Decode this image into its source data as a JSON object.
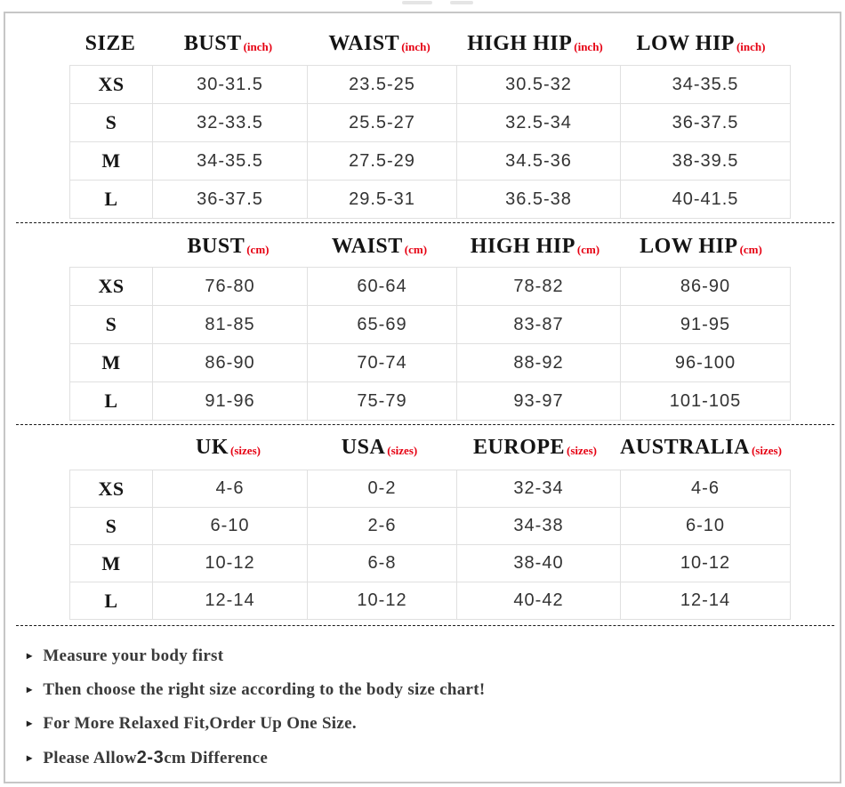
{
  "colors": {
    "accent_red": "#e60012",
    "header_text": "#141414",
    "value_text": "#333333",
    "grid_line": "#e0e0e0",
    "frame_border": "#c6c6c6",
    "dashed_line": "#1a1a1a",
    "note_text": "#3a3a3a"
  },
  "tables": [
    {
      "name": "inch",
      "size_header": "SIZE",
      "unit_label": "(inch)",
      "columns": [
        "BUST",
        "WAIST",
        "HIGH HIP",
        "LOW HIP"
      ],
      "rows": [
        {
          "size": "XS",
          "values": [
            "30-31.5",
            "23.5-25",
            "30.5-32",
            "34-35.5"
          ]
        },
        {
          "size": "S",
          "values": [
            "32-33.5",
            "25.5-27",
            "32.5-34",
            "36-37.5"
          ]
        },
        {
          "size": "M",
          "values": [
            "34-35.5",
            "27.5-29",
            "34.5-36",
            "38-39.5"
          ]
        },
        {
          "size": "L",
          "values": [
            "36-37.5",
            "29.5-31",
            "36.5-38",
            "40-41.5"
          ]
        }
      ]
    },
    {
      "name": "cm",
      "size_header": "",
      "unit_label": "(cm)",
      "columns": [
        "BUST",
        "WAIST",
        "HIGH HIP",
        "LOW HIP"
      ],
      "rows": [
        {
          "size": "XS",
          "values": [
            "76-80",
            "60-64",
            "78-82",
            "86-90"
          ]
        },
        {
          "size": "S",
          "values": [
            "81-85",
            "65-69",
            "83-87",
            "91-95"
          ]
        },
        {
          "size": "M",
          "values": [
            "86-90",
            "70-74",
            "88-92",
            "96-100"
          ]
        },
        {
          "size": "L",
          "values": [
            "91-96",
            "75-79",
            "93-97",
            "101-105"
          ]
        }
      ]
    },
    {
      "name": "international",
      "size_header": "",
      "unit_label": "(sizes)",
      "columns": [
        "UK",
        "USA",
        "EUROPE",
        "AUSTRALIA"
      ],
      "rows": [
        {
          "size": "XS",
          "values": [
            "4-6",
            "0-2",
            "32-34",
            "4-6"
          ]
        },
        {
          "size": "S",
          "values": [
            "6-10",
            "2-6",
            "34-38",
            "6-10"
          ]
        },
        {
          "size": "M",
          "values": [
            "10-12",
            "6-8",
            "38-40",
            "10-12"
          ]
        },
        {
          "size": "L",
          "values": [
            "12-14",
            "10-12",
            "40-42",
            "12-14"
          ]
        }
      ]
    }
  ],
  "notes": [
    {
      "bullet": "▸",
      "segments": [
        {
          "text": "Measure your body first",
          "style": "serif"
        }
      ]
    },
    {
      "bullet": "▸",
      "segments": [
        {
          "text": "Then choose the right size according to the body size chart!",
          "style": "serif"
        }
      ]
    },
    {
      "bullet": "▸",
      "segments": [
        {
          "text": "For More Relaxed Fit,Order Up One Size.",
          "style": "serif"
        }
      ]
    },
    {
      "bullet": "▸",
      "segments": [
        {
          "text": "Please Allow ",
          "style": "serif"
        },
        {
          "text": "2-3",
          "style": "sans-bold"
        },
        {
          "text": "cm Difference",
          "style": "serif"
        }
      ]
    }
  ]
}
